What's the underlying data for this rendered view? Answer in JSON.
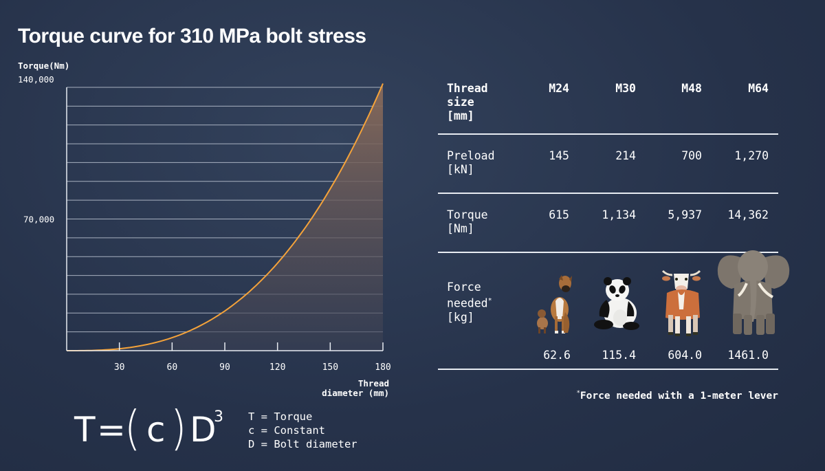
{
  "title": "Torque curve for 310 MPa bolt stress",
  "chart_data": {
    "type": "area",
    "ylabel": "Torque(Nm)",
    "xlabel_lines": [
      "Thread",
      "diameter (mm)"
    ],
    "y_tick_labels": [
      "140,000",
      "70,000"
    ],
    "y_tick_values": [
      140000,
      70000
    ],
    "x_ticks": [
      30,
      60,
      90,
      120,
      150,
      180
    ],
    "xlim": [
      0,
      180
    ],
    "ylim": [
      0,
      140000
    ],
    "series": [
      {
        "x": [
          0,
          30,
          60,
          90,
          120,
          150,
          180
        ],
        "values": [
          0,
          2000,
          11000,
          28000,
          56000,
          92000,
          142000
        ]
      }
    ],
    "colors": {
      "line": "#f5a33a",
      "fill_top": "#8a6b5a",
      "gridline": "#c8d0dc"
    }
  },
  "formula": {
    "T": "T",
    "eq": "=",
    "lparen": "(",
    "c": "c",
    "rparen": ")",
    "D": "D",
    "exp": "3"
  },
  "legend": [
    "T = Torque",
    "c = Constant",
    "D = Bolt diameter"
  ],
  "table": {
    "header": [
      "Thread",
      "size",
      "[mm]"
    ],
    "columns": [
      "M24",
      "M30",
      "M48",
      "M64"
    ],
    "preload": {
      "label": [
        "Preload",
        "[kN]"
      ],
      "values": [
        "145",
        "214",
        "700",
        "1,270"
      ]
    },
    "torque": {
      "label": [
        "Torque",
        "[Nm]"
      ],
      "values": [
        "615",
        "1,134",
        "5,937",
        "14,362"
      ]
    },
    "force": {
      "label": [
        "Force",
        "needed",
        "[kg]"
      ],
      "label_mark": "*",
      "values": [
        "62.6",
        "115.4",
        "604.0",
        "1461.0"
      ],
      "animals": [
        "dog-icon",
        "panda-icon",
        "cow-icon",
        "elephant-icon"
      ]
    }
  },
  "footnote": {
    "mark": "*",
    "text": "Force needed with a 1-meter lever"
  }
}
